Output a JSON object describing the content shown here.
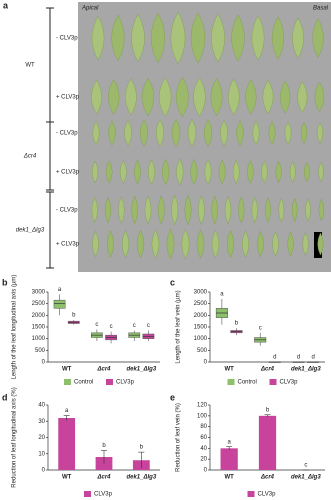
{
  "panel_a": {
    "panel": "a",
    "apical": "Apical",
    "basal": "Basal",
    "groups": [
      {
        "label": "WT",
        "rows": [
          "- CLV3p",
          "+ CLV3p"
        ]
      },
      {
        "label": "Δcr4",
        "rows": [
          "- CLV3p",
          "+ CLV3p"
        ]
      },
      {
        "label": "dek1_Δlg3",
        "rows": [
          "- CLV3p",
          "+ CLV3p"
        ]
      }
    ]
  },
  "chart_data": [
    {
      "type": "box",
      "panel": "b",
      "ylabel": "Length of the leaf longitudinal axis (µm)",
      "categories": [
        "WT",
        "Δcr4",
        "dek1_Δlg3"
      ],
      "ylim": [
        0,
        3000
      ],
      "yticks": [
        0,
        500,
        1000,
        1500,
        2000,
        2500,
        3000
      ],
      "series": [
        {
          "name": "Control",
          "color": "#8cc06a",
          "whisker_low": [
            2000,
            900,
            900
          ],
          "q1": [
            2300,
            1050,
            1050
          ],
          "median": [
            2500,
            1150,
            1150
          ],
          "q3": [
            2650,
            1250,
            1250
          ],
          "whisker_high": [
            2900,
            1400,
            1350
          ],
          "letters": [
            "a",
            "c",
            "c"
          ]
        },
        {
          "name": "CLV3p",
          "color": "#c8449c",
          "whisker_low": [
            1600,
            800,
            900
          ],
          "q1": [
            1650,
            950,
            1000
          ],
          "median": [
            1700,
            1050,
            1100
          ],
          "q3": [
            1750,
            1150,
            1200
          ],
          "whisker_high": [
            1800,
            1300,
            1350
          ],
          "letters": [
            "b",
            "c",
            "c"
          ]
        }
      ]
    },
    {
      "type": "box",
      "panel": "c",
      "ylabel": "Length of the leaf vein (µm)",
      "categories": [
        "WT",
        "Δcr4",
        "dek1_Δlg3"
      ],
      "ylim": [
        0,
        3000
      ],
      "yticks": [
        0,
        500,
        1000,
        1500,
        2000,
        2500,
        3000
      ],
      "series": [
        {
          "name": "Control",
          "color": "#8cc06a",
          "whisker_low": [
            1600,
            700,
            0
          ],
          "q1": [
            1900,
            850,
            0
          ],
          "median": [
            2100,
            950,
            0
          ],
          "q3": [
            2300,
            1050,
            0
          ],
          "whisker_high": [
            2700,
            1250,
            0
          ],
          "letters": [
            "a",
            "c",
            "d"
          ]
        },
        {
          "name": "CLV3p",
          "color": "#c8449c",
          "whisker_low": [
            1150,
            0,
            0
          ],
          "q1": [
            1250,
            0,
            0
          ],
          "median": [
            1300,
            0,
            0
          ],
          "q3": [
            1350,
            0,
            0
          ],
          "whisker_high": [
            1450,
            0,
            0
          ],
          "letters": [
            "b",
            "d",
            "d"
          ]
        }
      ]
    },
    {
      "type": "bar",
      "panel": "d",
      "ylabel": "Reduction of leaf longitudinal axis (%)",
      "categories": [
        "WT",
        "Δcr4",
        "dek1_Δlg3"
      ],
      "ylim": [
        0,
        40
      ],
      "yticks": [
        0,
        10,
        20,
        30,
        40
      ],
      "series": [
        {
          "name": "CLV3p",
          "color": "#c8449c",
          "values": [
            32,
            8,
            6
          ],
          "errors": [
            1.5,
            4,
            5
          ],
          "letters": [
            "a",
            "b",
            "b"
          ]
        }
      ]
    },
    {
      "type": "bar",
      "panel": "e",
      "ylabel": "Reduction of leaf vein (%)",
      "categories": [
        "WT",
        "Δcr4",
        "dek1_Δlg3"
      ],
      "ylim": [
        0,
        120
      ],
      "yticks": [
        0,
        20,
        40,
        60,
        80,
        100,
        120
      ],
      "series": [
        {
          "name": "CLV3p",
          "color": "#c8449c",
          "values": [
            40,
            100,
            0
          ],
          "errors": [
            3,
            2,
            0
          ],
          "letters": [
            "a",
            "b",
            "c"
          ]
        }
      ]
    }
  ]
}
